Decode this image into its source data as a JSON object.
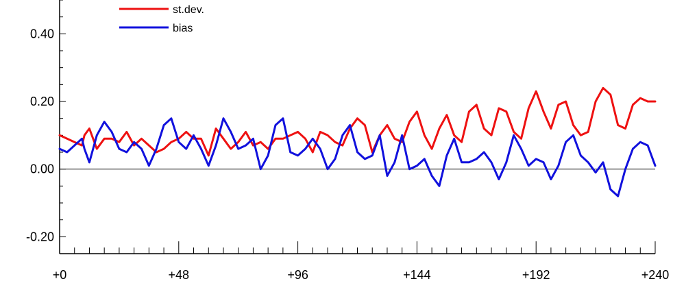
{
  "chart_data": {
    "type": "line",
    "title": "",
    "xlabel": "",
    "ylabel": "",
    "xlim": [
      0,
      240
    ],
    "ylim": [
      -0.25,
      0.5
    ],
    "x_ticks": [
      {
        "value": 0,
        "label": "+0"
      },
      {
        "value": 48,
        "label": "+48"
      },
      {
        "value": 96,
        "label": "+96"
      },
      {
        "value": 144,
        "label": "+144"
      },
      {
        "value": 192,
        "label": "+192"
      },
      {
        "value": 240,
        "label": "+240"
      }
    ],
    "x_minor_step": 6,
    "y_ticks": [
      {
        "value": 0.4,
        "label": "0.40"
      },
      {
        "value": 0.2,
        "label": "0.20"
      },
      {
        "value": 0.0,
        "label": "0.00"
      },
      {
        "value": -0.2,
        "label": "-0.20"
      }
    ],
    "y_minor_step": 0.05,
    "zero_line": true,
    "legend_position": "top-left",
    "series": [
      {
        "name": "st.dev.",
        "color": "#ee1111",
        "x": [
          0,
          3,
          6,
          9,
          10,
          12,
          15,
          18,
          21,
          24,
          27,
          30,
          33,
          36,
          39,
          42,
          45,
          48,
          51,
          54,
          57,
          60,
          63,
          66,
          69,
          72,
          75,
          78,
          81,
          84,
          87,
          90,
          93,
          96,
          99,
          102,
          105,
          108,
          111,
          114,
          117,
          120,
          123,
          126,
          129,
          132,
          135,
          138,
          141,
          144,
          147,
          150,
          153,
          156,
          159,
          162,
          165,
          168,
          171,
          174,
          177,
          180,
          183,
          186,
          189,
          192,
          195,
          198,
          201,
          204,
          207,
          210,
          213,
          216,
          219,
          222,
          225,
          228,
          231,
          234,
          237,
          240
        ],
        "values": [
          0.1,
          0.09,
          0.08,
          0.07,
          0.1,
          0.12,
          0.06,
          0.09,
          0.09,
          0.08,
          0.11,
          0.07,
          0.09,
          0.07,
          0.05,
          0.06,
          0.08,
          0.09,
          0.11,
          0.09,
          0.09,
          0.04,
          0.12,
          0.09,
          0.06,
          0.08,
          0.11,
          0.07,
          0.08,
          0.06,
          0.09,
          0.09,
          0.1,
          0.11,
          0.09,
          0.05,
          0.11,
          0.1,
          0.08,
          0.07,
          0.12,
          0.15,
          0.13,
          0.05,
          0.1,
          0.13,
          0.09,
          0.08,
          0.14,
          0.17,
          0.1,
          0.06,
          0.12,
          0.16,
          0.1,
          0.08,
          0.17,
          0.19,
          0.12,
          0.1,
          0.18,
          0.17,
          0.11,
          0.09,
          0.18,
          0.23,
          0.17,
          0.12,
          0.19,
          0.2,
          0.13,
          0.1,
          0.11,
          0.2,
          0.24,
          0.22,
          0.13,
          0.12,
          0.19,
          0.21,
          0.2,
          0.2
        ]
      },
      {
        "name": "bias",
        "color": "#1111dd",
        "x": [
          0,
          3,
          6,
          9,
          10,
          12,
          15,
          18,
          21,
          24,
          27,
          30,
          33,
          36,
          39,
          42,
          45,
          48,
          51,
          54,
          57,
          60,
          63,
          66,
          69,
          72,
          75,
          78,
          81,
          84,
          87,
          90,
          93,
          96,
          99,
          102,
          105,
          108,
          111,
          114,
          117,
          120,
          123,
          126,
          129,
          132,
          135,
          138,
          141,
          144,
          147,
          150,
          153,
          156,
          159,
          162,
          165,
          168,
          171,
          174,
          177,
          180,
          183,
          186,
          189,
          192,
          195,
          198,
          201,
          204,
          207,
          210,
          213,
          216,
          219,
          222,
          225,
          228,
          231,
          234,
          237,
          240
        ],
        "values": [
          0.06,
          0.05,
          0.07,
          0.09,
          0.06,
          0.02,
          0.1,
          0.14,
          0.11,
          0.06,
          0.05,
          0.08,
          0.06,
          0.01,
          0.06,
          0.13,
          0.15,
          0.08,
          0.06,
          0.1,
          0.06,
          0.01,
          0.07,
          0.15,
          0.11,
          0.06,
          0.07,
          0.09,
          0.0,
          0.04,
          0.13,
          0.15,
          0.05,
          0.04,
          0.06,
          0.09,
          0.06,
          0.0,
          0.03,
          0.1,
          0.13,
          0.05,
          0.03,
          0.04,
          0.1,
          -0.02,
          0.02,
          0.1,
          0.0,
          0.01,
          0.03,
          -0.02,
          -0.05,
          0.04,
          0.09,
          0.02,
          0.02,
          0.03,
          0.05,
          0.02,
          -0.03,
          0.02,
          0.1,
          0.06,
          0.01,
          0.03,
          0.02,
          -0.03,
          0.01,
          0.08,
          0.1,
          0.04,
          0.02,
          -0.01,
          0.02,
          -0.06,
          -0.08,
          0.0,
          0.06,
          0.08,
          0.07,
          0.01
        ]
      }
    ]
  }
}
